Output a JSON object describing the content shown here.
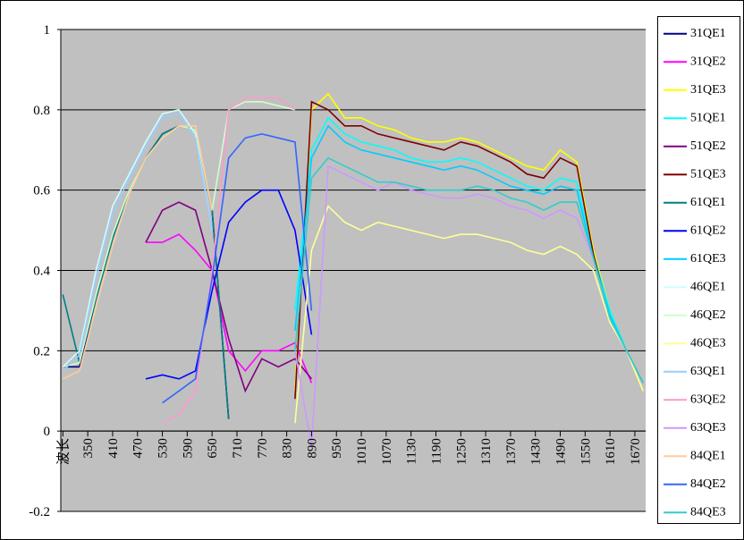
{
  "chart_data": {
    "type": "line",
    "x": [
      290,
      330,
      370,
      410,
      450,
      490,
      530,
      570,
      610,
      650,
      690,
      730,
      770,
      810,
      850,
      890,
      930,
      970,
      1010,
      1050,
      1090,
      1130,
      1170,
      1210,
      1250,
      1290,
      1330,
      1370,
      1410,
      1450,
      1490,
      1530,
      1570,
      1610,
      1650,
      1690
    ],
    "xlim": [
      285,
      1696
    ],
    "xticks": [
      {
        "value": 290,
        "label": "波长"
      },
      350,
      410,
      470,
      530,
      590,
      650,
      710,
      770,
      830,
      890,
      950,
      1010,
      1070,
      1130,
      1190,
      1250,
      1310,
      1370,
      1430,
      1490,
      1550,
      1610,
      1670
    ],
    "ylim": [
      -0.2,
      1
    ],
    "yticks": [
      1,
      0.8,
      0.6,
      0.4,
      0.2,
      0,
      -0.2
    ],
    "grid": true,
    "legend": "right",
    "series": [
      {
        "name": "31QE1",
        "color": "#000080",
        "values": [
          0.16,
          0.16,
          0.33,
          0.48,
          0.6,
          0.68,
          0.74,
          0.76,
          0.75,
          0.55,
          0.03,
          null,
          null,
          null,
          null,
          null,
          null,
          null,
          null,
          null,
          null,
          null,
          null,
          null,
          null,
          null,
          null,
          null,
          null,
          null,
          null,
          null,
          null,
          null,
          null,
          null
        ]
      },
      {
        "name": "31QE2",
        "color": "#ff00ff",
        "values": [
          null,
          null,
          null,
          null,
          null,
          0.47,
          0.47,
          0.49,
          0.45,
          0.4,
          0.2,
          0.15,
          0.2,
          0.2,
          0.22,
          0.12,
          null,
          null,
          null,
          null,
          null,
          null,
          null,
          null,
          null,
          null,
          null,
          null,
          null,
          null,
          null,
          null,
          null,
          null,
          null,
          null
        ]
      },
      {
        "name": "31QE3",
        "color": "#ffff00",
        "values": [
          null,
          null,
          null,
          null,
          null,
          null,
          null,
          null,
          null,
          null,
          null,
          null,
          null,
          null,
          0.1,
          0.8,
          0.84,
          0.78,
          0.78,
          0.76,
          0.75,
          0.73,
          0.72,
          0.72,
          0.73,
          0.72,
          0.7,
          0.68,
          0.66,
          0.65,
          0.7,
          0.67,
          0.45,
          0.3,
          0.2,
          0.1
        ]
      },
      {
        "name": "51QE1",
        "color": "#00ffff",
        "values": [
          null,
          null,
          null,
          null,
          null,
          null,
          null,
          null,
          null,
          null,
          null,
          null,
          null,
          null,
          0.3,
          0.7,
          0.78,
          0.74,
          0.72,
          0.71,
          0.7,
          0.68,
          0.67,
          0.67,
          0.68,
          0.67,
          0.65,
          0.63,
          0.61,
          0.6,
          0.63,
          0.62,
          0.44,
          0.3,
          0.2,
          0.12
        ]
      },
      {
        "name": "51QE2",
        "color": "#800080",
        "values": [
          null,
          null,
          null,
          null,
          null,
          0.47,
          0.55,
          0.57,
          0.55,
          0.4,
          0.23,
          0.1,
          0.18,
          0.16,
          0.18,
          0.13,
          null,
          null,
          null,
          null,
          null,
          null,
          null,
          null,
          null,
          null,
          null,
          null,
          null,
          null,
          null,
          null,
          null,
          null,
          null,
          null
        ]
      },
      {
        "name": "51QE3",
        "color": "#800000",
        "values": [
          null,
          null,
          null,
          null,
          null,
          null,
          null,
          null,
          null,
          null,
          null,
          null,
          null,
          null,
          0.08,
          0.82,
          0.8,
          0.76,
          0.76,
          0.74,
          0.73,
          0.72,
          0.71,
          0.7,
          0.72,
          0.71,
          0.69,
          0.67,
          0.64,
          0.63,
          0.68,
          0.66,
          0.44,
          0.28,
          0.2,
          0.12
        ]
      },
      {
        "name": "61QE1",
        "color": "#008080",
        "values": [
          0.34,
          0.17,
          0.33,
          0.48,
          0.6,
          0.68,
          0.74,
          0.76,
          0.75,
          0.55,
          0.03,
          null,
          null,
          null,
          null,
          null,
          null,
          null,
          null,
          null,
          null,
          null,
          null,
          null,
          null,
          null,
          null,
          null,
          null,
          null,
          null,
          null,
          null,
          null,
          null,
          null
        ]
      },
      {
        "name": "61QE2",
        "color": "#0000ff",
        "values": [
          null,
          null,
          null,
          null,
          null,
          0.13,
          0.14,
          0.13,
          0.15,
          0.35,
          0.52,
          0.57,
          0.6,
          0.6,
          0.5,
          0.24,
          null,
          null,
          null,
          null,
          null,
          null,
          null,
          null,
          null,
          null,
          null,
          null,
          null,
          null,
          null,
          null,
          null,
          null,
          null,
          null
        ]
      },
      {
        "name": "61QE3",
        "color": "#00ccff",
        "values": [
          null,
          null,
          null,
          null,
          null,
          null,
          null,
          null,
          null,
          null,
          null,
          null,
          null,
          null,
          0.25,
          0.68,
          0.76,
          0.72,
          0.7,
          0.69,
          0.68,
          0.67,
          0.66,
          0.65,
          0.66,
          0.65,
          0.63,
          0.61,
          0.6,
          0.59,
          0.61,
          0.6,
          0.43,
          0.29,
          0.2,
          0.12
        ]
      },
      {
        "name": "46QE1",
        "color": "#ccffff",
        "values": [
          0.16,
          0.2,
          0.4,
          0.56,
          0.64,
          0.72,
          0.79,
          0.8,
          0.74,
          0.5,
          null,
          null,
          null,
          null,
          null,
          null,
          null,
          null,
          null,
          null,
          null,
          null,
          null,
          null,
          null,
          null,
          null,
          null,
          null,
          null,
          null,
          null,
          null,
          null,
          null,
          null
        ]
      },
      {
        "name": "46QE2",
        "color": "#ccffcc",
        "values": [
          0.16,
          0.17,
          0.34,
          0.49,
          0.6,
          0.68,
          0.73,
          0.76,
          0.75,
          0.55,
          0.8,
          0.82,
          0.82,
          0.81,
          0.8,
          null,
          null,
          null,
          null,
          null,
          null,
          null,
          null,
          null,
          null,
          null,
          null,
          null,
          null,
          null,
          null,
          null,
          null,
          null,
          null,
          null
        ]
      },
      {
        "name": "46QE3",
        "color": "#ffff99",
        "values": [
          null,
          null,
          null,
          null,
          null,
          null,
          null,
          null,
          null,
          null,
          null,
          null,
          null,
          null,
          0.02,
          0.45,
          0.56,
          0.52,
          0.5,
          0.52,
          0.51,
          0.5,
          0.49,
          0.48,
          0.49,
          0.49,
          0.48,
          0.47,
          0.45,
          0.44,
          0.46,
          0.44,
          0.4,
          0.27,
          0.2,
          0.1
        ]
      },
      {
        "name": "63QE1",
        "color": "#99ccff",
        "values": [
          0.15,
          0.19,
          0.38,
          0.54,
          0.63,
          0.71,
          0.78,
          0.79,
          0.73,
          0.5,
          null,
          null,
          null,
          null,
          null,
          null,
          null,
          null,
          null,
          null,
          null,
          null,
          null,
          null,
          null,
          null,
          null,
          null,
          null,
          null,
          null,
          null,
          null,
          null,
          null,
          null
        ]
      },
      {
        "name": "63QE2",
        "color": "#ff99cc",
        "values": [
          null,
          null,
          null,
          null,
          null,
          null,
          0.02,
          0.04,
          0.1,
          0.4,
          0.8,
          0.83,
          0.83,
          0.83,
          0.8,
          null,
          null,
          null,
          null,
          null,
          null,
          null,
          null,
          null,
          null,
          null,
          null,
          null,
          null,
          null,
          null,
          null,
          null,
          null,
          null,
          null
        ]
      },
      {
        "name": "63QE3",
        "color": "#cc99ff",
        "values": [
          null,
          null,
          null,
          null,
          null,
          null,
          null,
          null,
          null,
          null,
          null,
          null,
          null,
          null,
          0.2,
          -0.04,
          0.66,
          0.64,
          0.62,
          0.6,
          0.62,
          0.6,
          0.59,
          0.58,
          0.58,
          0.59,
          0.58,
          0.56,
          0.55,
          0.53,
          0.55,
          0.53,
          0.43,
          0.28,
          0.2,
          0.12
        ]
      },
      {
        "name": "84QE1",
        "color": "#ffcc99",
        "values": [
          0.13,
          0.15,
          0.31,
          0.46,
          0.59,
          0.68,
          0.73,
          0.76,
          0.76,
          0.55,
          null,
          null,
          null,
          null,
          null,
          null,
          null,
          null,
          null,
          null,
          null,
          null,
          null,
          null,
          null,
          null,
          null,
          null,
          null,
          null,
          null,
          null,
          null,
          null,
          null,
          null
        ]
      },
      {
        "name": "84QE2",
        "color": "#3366ff",
        "values": [
          null,
          null,
          null,
          null,
          null,
          null,
          0.07,
          0.1,
          0.13,
          0.38,
          0.68,
          0.73,
          0.74,
          0.73,
          0.72,
          0.3,
          null,
          null,
          null,
          null,
          null,
          null,
          null,
          null,
          null,
          null,
          null,
          null,
          null,
          null,
          null,
          null,
          null,
          null,
          null,
          null
        ]
      },
      {
        "name": "84QE3",
        "color": "#33cccc",
        "values": [
          null,
          null,
          null,
          null,
          null,
          null,
          null,
          null,
          null,
          null,
          null,
          null,
          null,
          null,
          0.2,
          0.63,
          0.68,
          0.66,
          0.64,
          0.62,
          0.62,
          0.61,
          0.6,
          0.6,
          0.6,
          0.61,
          0.6,
          0.58,
          0.57,
          0.55,
          0.57,
          0.57,
          0.43,
          0.28,
          0.2,
          0.12
        ]
      }
    ]
  }
}
